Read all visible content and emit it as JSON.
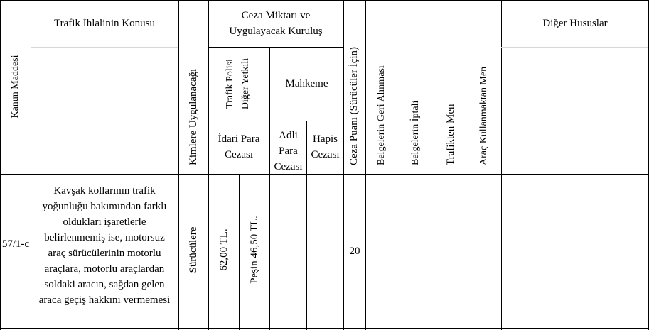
{
  "table": {
    "headers": {
      "kanun_maddesi": "Kanun Maddesi",
      "ihlal_konusu": "Trafik İhlalinin Konusu",
      "kimlere": "Kimlere Uygulanacağı",
      "ceza_miktari": "Ceza Miktarı ve Uygulayacak Kuruluş",
      "trafik_polisi": "Trafik Polisi Diğer Yetkili",
      "mahkeme": "Mahkeme",
      "idari_para": "İdari Para Cezası",
      "adli_para": "Adli Para Cezası",
      "hapis": "Hapis Cezası",
      "ceza_puani": "Ceza Puanı (Sürücüler İçin)",
      "belge_geri": "Belgelerin Geri Alınması",
      "belge_iptal": "Belgelerin İptali",
      "trafikten_men": "Trafikten Men",
      "arac_men": "Araç Kullanmaktan Men",
      "diger_hususlar": "Diğer Hususlar"
    },
    "row": {
      "madde": "57/1-c",
      "konu": "Kavşak kollarının trafik yoğunluğu bakımından farklı oldukları işaretlerle belirlenmemiş ise, motorsuz araç sürücülerinin motorlu araçlara, motorlu araçlardan soldaki aracın, sağdan gelen araca geçiş hakkını vermemesi",
      "kimlere": "Sürücülere",
      "idari_para": "62,00 TL.",
      "pesin": "Peşin 46,50 TL.",
      "ceza_puani": "20"
    }
  }
}
